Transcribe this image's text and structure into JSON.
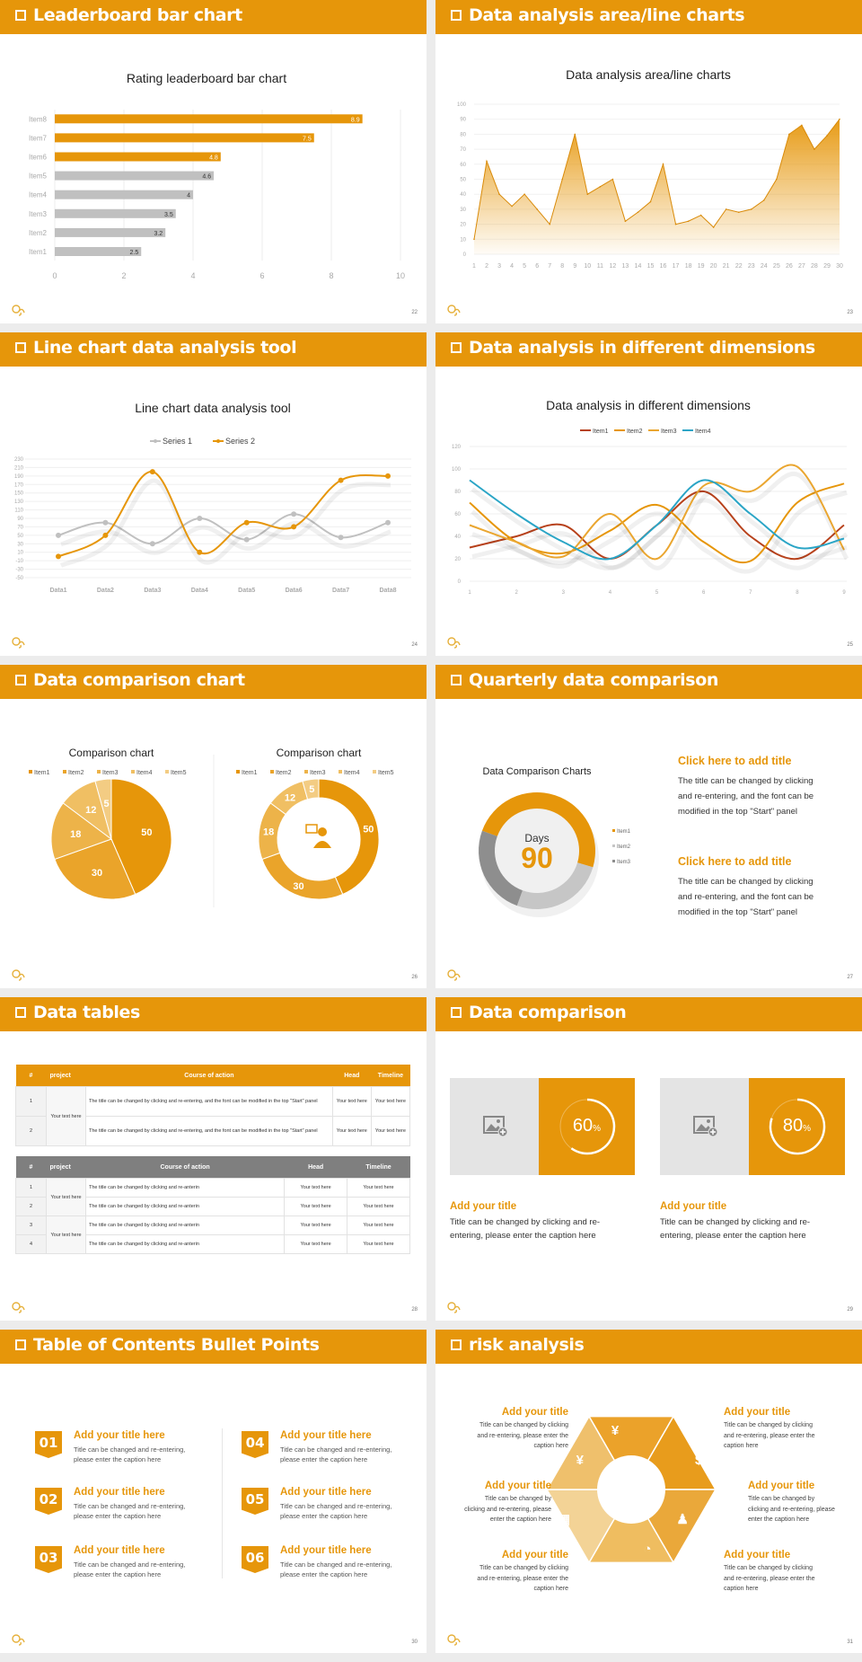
{
  "colors": {
    "accent": "#e6960a",
    "bar_gray": "#c0c0c0",
    "item1_red": "#b7411b",
    "item4_teal": "#2ba5c6",
    "light_gray": "#c6c6c6",
    "dark_gray": "#8e8e8e"
  },
  "slides": [
    {
      "title": "Leaderboard bar chart",
      "page": "22"
    },
    {
      "title": "Data analysis area/line charts",
      "page": "23"
    },
    {
      "title": "Line chart data analysis tool",
      "page": "24"
    },
    {
      "title": "Data analysis in different dimensions",
      "page": "25"
    },
    {
      "title": "Data comparison chart",
      "page": "26"
    },
    {
      "title": "Quarterly data comparison",
      "page": "27"
    },
    {
      "title": "Data tables",
      "page": "28"
    },
    {
      "title": "Data comparison",
      "page": "29"
    },
    {
      "title": "Table of Contents Bullet Points",
      "page": "30"
    },
    {
      "title": "risk analysis",
      "page": "31"
    }
  ],
  "chart_data": [
    {
      "type": "bar",
      "orientation": "horizontal",
      "title": "Rating leaderboard bar chart",
      "categories": [
        "Item1",
        "Item2",
        "Item3",
        "Item4",
        "Item5",
        "Item6",
        "Item7",
        "Item8"
      ],
      "values": [
        2.5,
        3.2,
        3.5,
        4,
        4.6,
        4.8,
        7.5,
        8.9
      ],
      "value_labels": [
        "2.5",
        "3.2",
        "3.5",
        "4",
        "4.6",
        "4.8",
        "7.5",
        "8.9"
      ],
      "bar_colors": [
        "#c0c0c0",
        "#c0c0c0",
        "#c0c0c0",
        "#c0c0c0",
        "#c0c0c0",
        "#e6960a",
        "#e6960a",
        "#e6960a"
      ],
      "xlim": [
        0,
        10
      ],
      "xticks": [
        "0",
        "2",
        "4",
        "6",
        "8",
        "10"
      ],
      "grid": true
    },
    {
      "type": "area",
      "title": "Data analysis area/line charts",
      "x": [
        "1",
        "2",
        "3",
        "4",
        "5",
        "6",
        "7",
        "8",
        "9",
        "10",
        "11",
        "12",
        "13",
        "14",
        "15",
        "16",
        "17",
        "18",
        "19",
        "20",
        "21",
        "22",
        "23",
        "24",
        "25",
        "26",
        "27",
        "28",
        "29",
        "30"
      ],
      "values": [
        10,
        62,
        40,
        32,
        40,
        30,
        20,
        50,
        80,
        40,
        45,
        50,
        22,
        28,
        35,
        60,
        20,
        22,
        26,
        18,
        30,
        28,
        30,
        36,
        50,
        80,
        86,
        70,
        79,
        90
      ],
      "ylim": [
        0,
        100
      ],
      "yticks": [
        "0",
        "10",
        "20",
        "30",
        "40",
        "50",
        "60",
        "70",
        "80",
        "90",
        "100"
      ],
      "grid": true
    },
    {
      "type": "line",
      "title": "Line chart data analysis tool",
      "legend": "top",
      "categories": [
        "Data1",
        "Data2",
        "Data3",
        "Data4",
        "Data5",
        "Data6",
        "Data7",
        "Data8"
      ],
      "series": [
        {
          "name": "Series 1",
          "color": "#c0c0c0",
          "values": [
            50,
            80,
            30,
            90,
            40,
            100,
            45,
            80
          ]
        },
        {
          "name": "Series 2",
          "color": "#e6960a",
          "values": [
            0,
            50,
            200,
            10,
            80,
            70,
            180,
            190
          ]
        }
      ],
      "ylim": [
        -50,
        230
      ],
      "yticks": [
        "230",
        "210",
        "190",
        "170",
        "150",
        "130",
        "110",
        "90",
        "70",
        "50",
        "30",
        "10",
        "-10",
        "-30",
        "-50"
      ],
      "grid": true
    },
    {
      "type": "line",
      "title": "Data analysis in different dimensions",
      "legend": "top",
      "categories": [
        "1",
        "2",
        "3",
        "4",
        "5",
        "6",
        "7",
        "8",
        "9"
      ],
      "series": [
        {
          "name": "Item1",
          "color": "#b7411b",
          "values": [
            30,
            40,
            50,
            20,
            50,
            80,
            40,
            20,
            50
          ]
        },
        {
          "name": "Item2",
          "color": "#e6960a",
          "values": [
            70,
            35,
            25,
            45,
            68,
            35,
            18,
            70,
            87
          ]
        },
        {
          "name": "Item3",
          "color": "#eaa630",
          "values": [
            50,
            35,
            22,
            60,
            20,
            85,
            80,
            102,
            28
          ]
        },
        {
          "name": "Item4",
          "color": "#2ba5c6",
          "values": [
            90,
            60,
            35,
            20,
            50,
            90,
            60,
            30,
            38
          ]
        }
      ],
      "ylim": [
        0,
        120
      ],
      "yticks": [
        "0",
        "20",
        "40",
        "60",
        "80",
        "100",
        "120"
      ],
      "grid": true
    },
    {
      "type": "pie",
      "title": "Comparison chart",
      "legend": "top",
      "labels": [
        "Item1",
        "Item2",
        "Item3",
        "Item4",
        "Item5"
      ],
      "values": [
        50,
        30,
        18,
        12,
        5
      ],
      "value_labels": [
        "50",
        "30",
        "18",
        "12",
        "5"
      ],
      "colors": [
        "#e6960a",
        "#eaa42a",
        "#edb349",
        "#f0bf63",
        "#f3cc83"
      ]
    },
    {
      "type": "pie",
      "variant": "donut",
      "title": "Comparison chart",
      "legend": "top",
      "labels": [
        "Item1",
        "Item2",
        "Item3",
        "Item4",
        "Item5"
      ],
      "values": [
        50,
        30,
        18,
        12,
        5
      ],
      "value_labels": [
        "50",
        "30",
        "18",
        "12",
        "5"
      ],
      "colors": [
        "#e6960a",
        "#eaa42a",
        "#edb349",
        "#f0bf63",
        "#f3cc83"
      ],
      "center_icon": "person-presenter-icon"
    },
    {
      "type": "pie",
      "variant": "donut",
      "title": "Data Comparison Charts",
      "legend": "right",
      "labels": [
        "Item1",
        "Item2",
        "Item3"
      ],
      "values": [
        49,
        26,
        25
      ],
      "colors": [
        "#e6960a",
        "#c6c6c6",
        "#8e8e8e"
      ],
      "center_label": "Days",
      "center_value": "90"
    }
  ],
  "quarterly": {
    "blocks": [
      {
        "title": "Click here to add title",
        "lines": [
          "The title can be changed by clicking",
          "and re-entering, and the font can be",
          "modified in the top \"Start\" panel"
        ]
      },
      {
        "title": "Click here to add title",
        "lines": [
          "The title can be changed by clicking",
          "and re-entering, and the font can be",
          "modified in the top \"Start\" panel"
        ]
      }
    ]
  },
  "tables": {
    "headers": [
      "#",
      "project",
      "Course of action",
      "Head",
      "Timeline"
    ],
    "table1": {
      "header_color": "#e6960a",
      "project": "Your text here",
      "rows": [
        {
          "n": "1",
          "action": "The title can be changed by clicking and re-entering, and the font can be modified in the top \"Start\" panel",
          "head": "Your text here",
          "timeline": "Your text here"
        },
        {
          "n": "2",
          "action": "The title can be changed by clicking and re-entering, and the font can be modified in the top \"Start\" panel",
          "head": "Your text here",
          "timeline": "Your text here"
        }
      ]
    },
    "table2": {
      "header_color": "#7f7f7f",
      "projects": [
        "Your text here",
        "Your text here"
      ],
      "rows": [
        {
          "n": "1",
          "action": "The title can be changed by clicking and re-anterin",
          "head": "Your text here",
          "timeline": "Your text here"
        },
        {
          "n": "2",
          "action": "The title can be changed by clicking and re-anterin",
          "head": "Your text here",
          "timeline": "Your text here"
        },
        {
          "n": "3",
          "action": "The title can be changed by clicking and re-anterin",
          "head": "Your text here",
          "timeline": "Your text here"
        },
        {
          "n": "4",
          "action": "The title can be changed by clicking and re-anterin",
          "head": "Your text here",
          "timeline": "Your text here"
        }
      ]
    }
  },
  "comparison": {
    "cards": [
      {
        "percent": 60,
        "number": "60",
        "unit": "%",
        "title": "Add your title",
        "lines": [
          "Title can be changed by clicking and re-",
          "entering, please enter the caption here"
        ]
      },
      {
        "percent": 80,
        "number": "80",
        "unit": "%",
        "title": "Add your title",
        "lines": [
          "Title can be changed by clicking and re-",
          "entering, please enter the caption here"
        ]
      }
    ]
  },
  "toc": {
    "items": [
      {
        "num": "01",
        "title": "Add your title here",
        "lines": [
          "Title can be changed and re-entering,",
          "please enter the caption here"
        ]
      },
      {
        "num": "02",
        "title": "Add your title here",
        "lines": [
          "Title can be changed and re-entering,",
          "please enter the caption here"
        ]
      },
      {
        "num": "03",
        "title": "Add your title here",
        "lines": [
          "Title can be changed and re-entering,",
          "please enter the caption here"
        ]
      },
      {
        "num": "04",
        "title": "Add your title here",
        "lines": [
          "Title can be changed and re-entering,",
          "please enter the caption here"
        ]
      },
      {
        "num": "05",
        "title": "Add your title here",
        "lines": [
          "Title can be changed and re-entering,",
          "please enter the caption here"
        ]
      },
      {
        "num": "06",
        "title": "Add your title here",
        "lines": [
          "Title can be changed and re-entering,",
          "please enter the caption here"
        ]
      }
    ]
  },
  "risk": {
    "items": [
      {
        "title": "Add your title",
        "lines": [
          "Title can be changed by clicking",
          "and re-entering, please enter the",
          "caption here"
        ]
      },
      {
        "title": "Add your title",
        "lines": [
          "Title can be changed by clicking",
          "and re-entering, please enter the",
          "caption here"
        ]
      },
      {
        "title": "Add your title",
        "lines": [
          "Title can be changed by",
          "clicking and re-entering, please",
          "enter the caption here"
        ]
      },
      {
        "title": "Add your title",
        "lines": [
          "Title can be changed by",
          "clicking and re-entering, please",
          "enter the caption here"
        ]
      },
      {
        "title": "Add your title",
        "lines": [
          "Title can be changed by clicking",
          "and re-entering, please enter the",
          "caption here"
        ]
      },
      {
        "title": "Add your title",
        "lines": [
          "Title can be changed by clicking",
          "and re-entering, please enter the",
          "caption here"
        ]
      }
    ],
    "icons": [
      "money-bag-icon",
      "coins-icon",
      "users-icon",
      "pie-chart-icon",
      "building-icon",
      "yen-hand-icon"
    ]
  }
}
